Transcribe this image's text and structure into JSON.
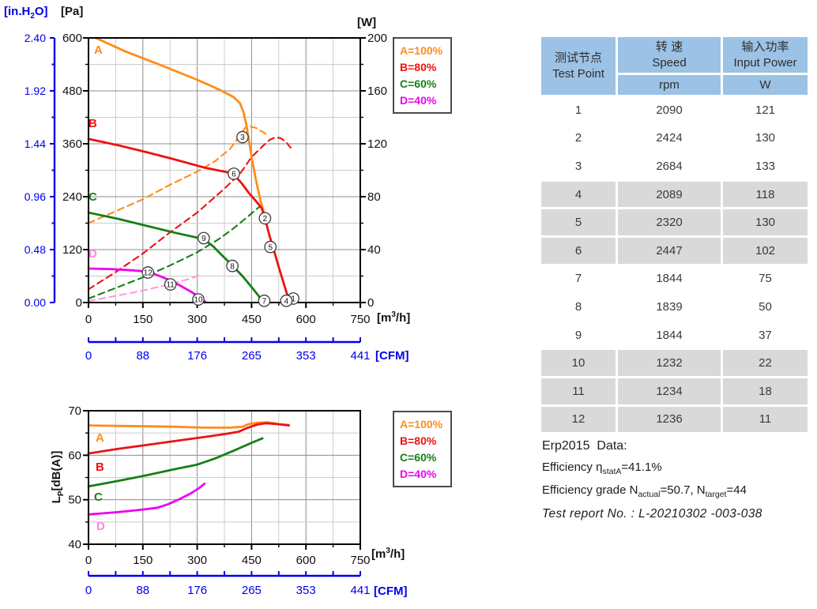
{
  "colors": {
    "blue": "#0000EE",
    "orange": "#FF8C1A",
    "red": "#EE1111",
    "green": "#168016",
    "magenta": "#EE00EE",
    "pink_dash": "#FF9ADB",
    "pink_label": "#FF87DC",
    "black": "#111111",
    "grid_major": "#8C8C8C",
    "grid_minor": "#CBCBCB",
    "header_blue": "#9CC2E5",
    "row_gray": "#D9D9D9"
  },
  "legend": {
    "items": [
      {
        "label": "A=100%",
        "color": "orange"
      },
      {
        "label": "B=80%",
        "color": "red"
      },
      {
        "label": "C=60%",
        "color": "green"
      },
      {
        "label": "D=40%",
        "color": "magenta"
      }
    ]
  },
  "top_chart": {
    "inh2o_axis": {
      "unit_pre": "[in.H",
      "unit_sub": "2",
      "unit_post": "O]"
    },
    "pa_axis": {
      "unit": "[Pa]"
    },
    "w_axis": {
      "unit": "[W]"
    },
    "x_axis": {
      "unit_pre": "[m",
      "unit_sup": "3",
      "unit_post": "/h]"
    },
    "cfm_axis": {
      "unit": "[CFM]"
    },
    "curve_labels": {
      "a": "A",
      "b": "B",
      "c": "C",
      "d": "D"
    }
  },
  "bottom_chart": {
    "y_axis": {
      "label_pre": "L",
      "label_sub": "P",
      "label_post": "[dB(A)]"
    },
    "x_axis": {
      "unit_pre": "[m",
      "unit_sup": "3",
      "unit_post": "/h]"
    },
    "cfm_axis": {
      "unit": "[CFM]"
    },
    "curve_labels": {
      "a": "A",
      "b": "B",
      "c": "C",
      "d": "D"
    }
  },
  "table": {
    "header": {
      "col1_zh": "测试节点",
      "col1_en": "Test Point",
      "col2_zh": "转 速",
      "col2_en": "Speed",
      "col2_unit": "rpm",
      "col3_zh": "输入功率",
      "col3_en": "Input Power",
      "col3_unit": "W"
    },
    "rows": [
      [
        "1",
        "2090",
        "121"
      ],
      [
        "2",
        "2424",
        "130"
      ],
      [
        "3",
        "2684",
        "133"
      ],
      [
        "4",
        "2089",
        "118"
      ],
      [
        "5",
        "2320",
        "130"
      ],
      [
        "6",
        "2447",
        "102"
      ],
      [
        "7",
        "1844",
        "75"
      ],
      [
        "8",
        "1839",
        "50"
      ],
      [
        "9",
        "1844",
        "37"
      ],
      [
        "10",
        "1232",
        "22"
      ],
      [
        "11",
        "1234",
        "18"
      ],
      [
        "12",
        "1236",
        "11"
      ]
    ]
  },
  "notes": {
    "line1": "Erp2015  Data:",
    "eff_pre": "Efficiency η",
    "eff_sub": "statA",
    "eff_post": "=41.1%",
    "grade_pre": "Efficiency grade N",
    "grade_sub1": "actual",
    "grade_mid": "=50.7, N",
    "grade_sub2": "target",
    "grade_post": "=44",
    "report": "Test report No. : L-20210302 -003-038"
  },
  "chart_data": [
    {
      "type": "line",
      "x": {
        "label": "[m3/h]",
        "min": 0,
        "max": 750,
        "major_ticks": [
          0,
          150,
          300,
          450,
          600,
          750
        ],
        "minor_step": 75
      },
      "x2": {
        "label": "[CFM]",
        "tick_labels": [
          "0",
          "88",
          "176",
          "265",
          "353",
          "441"
        ]
      },
      "y": {
        "label": "[Pa]",
        "min": 0,
        "max": 600,
        "major_ticks": [
          600,
          480,
          360,
          240,
          120,
          0
        ],
        "minor_step": 60
      },
      "y2": {
        "label": "[in.H2O]",
        "tick_labels": [
          "2.40",
          "1.92",
          "1.44",
          "0.96",
          "0.48",
          "0.00"
        ]
      },
      "y_right": {
        "label": "[W]",
        "min": 0,
        "max": 200,
        "major_ticks": [
          200,
          160,
          120,
          80,
          40,
          0
        ],
        "minor_step": 20
      },
      "grid": true,
      "legend_position": "outside-right",
      "series": [
        {
          "name": "A=100% input power",
          "axis": "w",
          "style": "dashed",
          "color": "orange",
          "points": [
            [
              0,
              60
            ],
            [
              75,
              69
            ],
            [
              150,
              78
            ],
            [
              225,
              89
            ],
            [
              300,
              99
            ],
            [
              350,
              107
            ],
            [
              390,
              116
            ],
            [
              415,
              125
            ],
            [
              432,
              132
            ],
            [
              447,
              133
            ],
            [
              462,
              132
            ],
            [
              480,
              129
            ],
            [
              497,
              126
            ]
          ]
        },
        {
          "name": "B=80% input power",
          "axis": "w",
          "style": "dashed",
          "color": "red",
          "points": [
            [
              0,
              10
            ],
            [
              75,
              23
            ],
            [
              150,
              37
            ],
            [
              225,
              53
            ],
            [
              300,
              68
            ],
            [
              375,
              86
            ],
            [
              420,
              98
            ],
            [
              450,
              110
            ],
            [
              480,
              118
            ],
            [
              500,
              123
            ],
            [
              517,
              125
            ],
            [
              532,
              124
            ],
            [
              546,
              121
            ],
            [
              558,
              117
            ]
          ]
        },
        {
          "name": "C=60% input power",
          "axis": "w",
          "style": "dashed",
          "color": "green",
          "points": [
            [
              0,
              3
            ],
            [
              75,
              11
            ],
            [
              150,
              19
            ],
            [
              225,
              28
            ],
            [
              300,
              38
            ],
            [
              360,
              48
            ],
            [
              400,
              56
            ],
            [
              440,
              65
            ],
            [
              470,
              72
            ],
            [
              485,
              75
            ]
          ]
        },
        {
          "name": "D=40% input power",
          "axis": "w",
          "style": "dashed",
          "color": "pink_dash",
          "points": [
            [
              0,
              1
            ],
            [
              75,
              5
            ],
            [
              150,
              9
            ],
            [
              225,
              14
            ],
            [
              280,
              18
            ],
            [
              310,
              21
            ]
          ]
        },
        {
          "name": "A=100% static pressure",
          "axis": "pa",
          "style": "solid",
          "color": "orange",
          "points": [
            [
              20,
              600
            ],
            [
              100,
              570
            ],
            [
              200,
              538
            ],
            [
              300,
              505
            ],
            [
              360,
              483
            ],
            [
              400,
              466
            ],
            [
              418,
              452
            ],
            [
              428,
              431
            ],
            [
              436,
              401
            ],
            [
              443,
              366
            ],
            [
              452,
              321
            ],
            [
              463,
              274
            ],
            [
              475,
              230
            ],
            [
              487,
              196
            ]
          ]
        },
        {
          "name": "B=80% static pressure",
          "axis": "pa",
          "style": "solid",
          "color": "red",
          "points": [
            [
              0,
              371
            ],
            [
              80,
              357
            ],
            [
              160,
              341
            ],
            [
              240,
              324
            ],
            [
              320,
              306
            ],
            [
              380,
              296
            ],
            [
              401,
              290
            ],
            [
              422,
              271
            ],
            [
              442,
              249
            ],
            [
              462,
              230
            ],
            [
              478,
              214
            ],
            [
              490,
              182
            ],
            [
              500,
              150
            ],
            [
              511,
              120
            ],
            [
              523,
              86
            ],
            [
              538,
              45
            ],
            [
              550,
              13
            ],
            [
              556,
              0
            ]
          ]
        },
        {
          "name": "C=60% static pressure",
          "axis": "pa",
          "style": "solid",
          "color": "green",
          "points": [
            [
              0,
              204
            ],
            [
              80,
              190
            ],
            [
              160,
              174
            ],
            [
              240,
              158
            ],
            [
              300,
              147
            ],
            [
              320,
              142
            ],
            [
              342,
              129
            ],
            [
              366,
              109
            ],
            [
              397,
              84
            ],
            [
              426,
              59
            ],
            [
              456,
              29
            ],
            [
              478,
              6
            ]
          ]
        },
        {
          "name": "D=40% static pressure",
          "axis": "pa",
          "style": "solid",
          "color": "magenta",
          "points": [
            [
              0,
              77
            ],
            [
              60,
              76
            ],
            [
              120,
              73
            ],
            [
              150,
              71
            ],
            [
              170,
              68
            ],
            [
              200,
              59
            ],
            [
              226,
              50
            ],
            [
              256,
              37
            ],
            [
              286,
              23
            ],
            [
              310,
              10
            ],
            [
              322,
              2
            ]
          ]
        }
      ],
      "markers": [
        {
          "n": "3",
          "x": 425,
          "y": 375
        },
        {
          "n": "6",
          "x": 401,
          "y": 292
        },
        {
          "n": "2",
          "x": 487,
          "y": 191
        },
        {
          "n": "5",
          "x": 502,
          "y": 126
        },
        {
          "n": "9",
          "x": 318,
          "y": 146
        },
        {
          "n": "8",
          "x": 397,
          "y": 83
        },
        {
          "n": "12",
          "x": 164,
          "y": 68
        },
        {
          "n": "11",
          "x": 226,
          "y": 41
        },
        {
          "n": "10",
          "x": 303,
          "y": 7
        },
        {
          "n": "7",
          "x": 485,
          "y": 4
        },
        {
          "n": "1",
          "x": 565,
          "y": 9
        },
        {
          "n": "4",
          "x": 546,
          "y": 4
        }
      ]
    },
    {
      "type": "line",
      "x": {
        "label": "[m3/h]",
        "min": 0,
        "max": 750,
        "major_ticks": [
          0,
          150,
          300,
          450,
          600,
          750
        ],
        "minor_step": 75
      },
      "x2": {
        "label": "[CFM]",
        "tick_labels": [
          "0",
          "88",
          "176",
          "265",
          "353",
          "441"
        ]
      },
      "y": {
        "label": "Lp[dB(A)]",
        "min": 40,
        "max": 70,
        "major_ticks": [
          70,
          60,
          50,
          40
        ],
        "minor_step": 5
      },
      "grid": true,
      "legend_position": "outside-right",
      "series": [
        {
          "name": "A=100% noise",
          "axis": "db",
          "style": "solid",
          "color": "orange",
          "points": [
            [
              0,
              66.7
            ],
            [
              80,
              66.6
            ],
            [
              160,
              66.5
            ],
            [
              240,
              66.4
            ],
            [
              320,
              66.2
            ],
            [
              390,
              66.2
            ],
            [
              425,
              66.4
            ],
            [
              442,
              67.0
            ],
            [
              465,
              67.3
            ],
            [
              495,
              67.4
            ],
            [
              525,
              67.0
            ],
            [
              553,
              66.8
            ]
          ]
        },
        {
          "name": "B=80% noise",
          "axis": "db",
          "style": "solid",
          "color": "red",
          "points": [
            [
              0,
              60.4
            ],
            [
              80,
              61.4
            ],
            [
              160,
              62.3
            ],
            [
              240,
              63.2
            ],
            [
              320,
              64.1
            ],
            [
              380,
              64.8
            ],
            [
              415,
              65.3
            ],
            [
              440,
              66.2
            ],
            [
              465,
              66.9
            ],
            [
              490,
              67.2
            ],
            [
              520,
              67.0
            ],
            [
              553,
              66.7
            ]
          ]
        },
        {
          "name": "C=60% noise",
          "axis": "db",
          "style": "solid",
          "color": "green",
          "points": [
            [
              0,
              53.0
            ],
            [
              80,
              54.2
            ],
            [
              160,
              55.5
            ],
            [
              240,
              56.9
            ],
            [
              300,
              57.9
            ],
            [
              350,
              59.3
            ],
            [
              400,
              61.0
            ],
            [
              450,
              62.8
            ],
            [
              480,
              63.8
            ]
          ]
        },
        {
          "name": "D=40% noise",
          "axis": "db",
          "style": "solid",
          "color": "magenta",
          "points": [
            [
              0,
              46.7
            ],
            [
              80,
              47.2
            ],
            [
              150,
              47.8
            ],
            [
              190,
              48.2
            ],
            [
              220,
              49.0
            ],
            [
              250,
              50.1
            ],
            [
              280,
              51.3
            ],
            [
              305,
              52.6
            ],
            [
              320,
              53.6
            ]
          ]
        }
      ]
    }
  ]
}
